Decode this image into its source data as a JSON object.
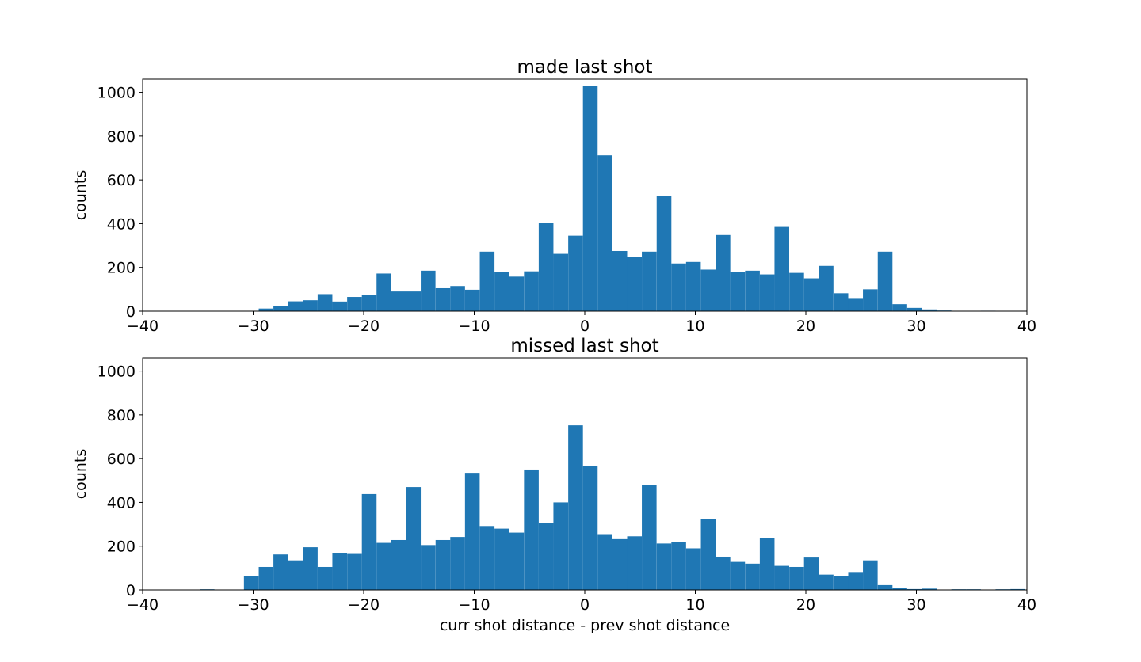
{
  "colors": {
    "bar": "#1f77b4",
    "axis": "#000000",
    "background": "#ffffff"
  },
  "chart_data": [
    {
      "type": "bar",
      "subtype": "histogram",
      "title": "made last shot",
      "xlabel": "",
      "ylabel": "counts",
      "xlim": [
        -40,
        40
      ],
      "ylim": [
        0,
        1060
      ],
      "xticks": [
        "−40",
        "−30",
        "−20",
        "−10",
        "0",
        "10",
        "20",
        "30",
        "40"
      ],
      "xtick_values": [
        -40,
        -30,
        -20,
        -10,
        0,
        10,
        20,
        30,
        40
      ],
      "yticks": [
        "0",
        "200",
        "400",
        "600",
        "800",
        "1000"
      ],
      "ytick_values": [
        0,
        200,
        400,
        600,
        800,
        1000
      ],
      "grid": false,
      "bin_width": 1.33,
      "bins": [
        {
          "x": -31.5,
          "count": 0
        },
        {
          "x": -30.17,
          "count": 0
        },
        {
          "x": -28.83,
          "count": 12
        },
        {
          "x": -27.5,
          "count": 25
        },
        {
          "x": -26.17,
          "count": 45
        },
        {
          "x": -24.83,
          "count": 50
        },
        {
          "x": -23.5,
          "count": 78
        },
        {
          "x": -22.17,
          "count": 44
        },
        {
          "x": -20.83,
          "count": 65
        },
        {
          "x": -19.5,
          "count": 75
        },
        {
          "x": -18.17,
          "count": 172
        },
        {
          "x": -16.83,
          "count": 90
        },
        {
          "x": -15.5,
          "count": 90
        },
        {
          "x": -14.17,
          "count": 185
        },
        {
          "x": -12.83,
          "count": 105
        },
        {
          "x": -11.5,
          "count": 115
        },
        {
          "x": -10.17,
          "count": 98
        },
        {
          "x": -8.83,
          "count": 272
        },
        {
          "x": -7.5,
          "count": 178
        },
        {
          "x": -6.17,
          "count": 158
        },
        {
          "x": -4.83,
          "count": 182
        },
        {
          "x": -3.5,
          "count": 405
        },
        {
          "x": -2.17,
          "count": 262
        },
        {
          "x": -0.83,
          "count": 345
        },
        {
          "x": 0.5,
          "count": 1028
        },
        {
          "x": 1.83,
          "count": 712
        },
        {
          "x": 3.17,
          "count": 275
        },
        {
          "x": 4.5,
          "count": 248
        },
        {
          "x": 5.83,
          "count": 272
        },
        {
          "x": 7.17,
          "count": 525
        },
        {
          "x": 8.5,
          "count": 218
        },
        {
          "x": 9.83,
          "count": 225
        },
        {
          "x": 11.17,
          "count": 190
        },
        {
          "x": 12.5,
          "count": 348
        },
        {
          "x": 13.83,
          "count": 178
        },
        {
          "x": 15.17,
          "count": 185
        },
        {
          "x": 16.5,
          "count": 168
        },
        {
          "x": 17.83,
          "count": 385
        },
        {
          "x": 19.17,
          "count": 175
        },
        {
          "x": 20.5,
          "count": 150
        },
        {
          "x": 21.83,
          "count": 207
        },
        {
          "x": 23.17,
          "count": 82
        },
        {
          "x": 24.5,
          "count": 60
        },
        {
          "x": 25.83,
          "count": 100
        },
        {
          "x": 27.17,
          "count": 272
        },
        {
          "x": 28.5,
          "count": 32
        },
        {
          "x": 29.83,
          "count": 15
        },
        {
          "x": 31.17,
          "count": 8
        },
        {
          "x": 32.5,
          "count": 3
        },
        {
          "x": 33.83,
          "count": 0
        },
        {
          "x": 35.17,
          "count": 0
        },
        {
          "x": 36.5,
          "count": 2
        }
      ]
    },
    {
      "type": "bar",
      "subtype": "histogram",
      "title": "missed last shot",
      "xlabel": "curr shot distance - prev shot distance",
      "ylabel": "counts",
      "xlim": [
        -40,
        40
      ],
      "ylim": [
        0,
        1060
      ],
      "xticks": [
        "−40",
        "−30",
        "−20",
        "−10",
        "0",
        "10",
        "20",
        "30",
        "40"
      ],
      "xtick_values": [
        -40,
        -30,
        -20,
        -10,
        0,
        10,
        20,
        30,
        40
      ],
      "yticks": [
        "0",
        "200",
        "400",
        "600",
        "800",
        "1000"
      ],
      "ytick_values": [
        0,
        200,
        400,
        600,
        800,
        1000
      ],
      "grid": false,
      "bin_width": 1.33,
      "bins": [
        {
          "x": -34.17,
          "count": 3
        },
        {
          "x": -32.83,
          "count": 0
        },
        {
          "x": -31.5,
          "count": 0
        },
        {
          "x": -30.17,
          "count": 65
        },
        {
          "x": -28.83,
          "count": 105
        },
        {
          "x": -27.5,
          "count": 162
        },
        {
          "x": -26.17,
          "count": 135
        },
        {
          "x": -24.83,
          "count": 195
        },
        {
          "x": -23.5,
          "count": 105
        },
        {
          "x": -22.17,
          "count": 170
        },
        {
          "x": -20.83,
          "count": 168
        },
        {
          "x": -19.5,
          "count": 438
        },
        {
          "x": -18.17,
          "count": 215
        },
        {
          "x": -16.83,
          "count": 228
        },
        {
          "x": -15.5,
          "count": 470
        },
        {
          "x": -14.17,
          "count": 205
        },
        {
          "x": -12.83,
          "count": 228
        },
        {
          "x": -11.5,
          "count": 242
        },
        {
          "x": -10.17,
          "count": 535
        },
        {
          "x": -8.83,
          "count": 292
        },
        {
          "x": -7.5,
          "count": 280
        },
        {
          "x": -6.17,
          "count": 262
        },
        {
          "x": -4.83,
          "count": 550
        },
        {
          "x": -3.5,
          "count": 305
        },
        {
          "x": -2.17,
          "count": 400
        },
        {
          "x": -0.83,
          "count": 752
        },
        {
          "x": 0.5,
          "count": 568
        },
        {
          "x": 1.83,
          "count": 255
        },
        {
          "x": 3.17,
          "count": 232
        },
        {
          "x": 4.5,
          "count": 245
        },
        {
          "x": 5.83,
          "count": 480
        },
        {
          "x": 7.17,
          "count": 212
        },
        {
          "x": 8.5,
          "count": 220
        },
        {
          "x": 9.83,
          "count": 190
        },
        {
          "x": 11.17,
          "count": 322
        },
        {
          "x": 12.5,
          "count": 152
        },
        {
          "x": 13.83,
          "count": 128
        },
        {
          "x": 15.17,
          "count": 120
        },
        {
          "x": 16.5,
          "count": 238
        },
        {
          "x": 17.83,
          "count": 110
        },
        {
          "x": 19.17,
          "count": 105
        },
        {
          "x": 20.5,
          "count": 148
        },
        {
          "x": 21.83,
          "count": 70
        },
        {
          "x": 23.17,
          "count": 62
        },
        {
          "x": 24.5,
          "count": 82
        },
        {
          "x": 25.83,
          "count": 135
        },
        {
          "x": 27.17,
          "count": 22
        },
        {
          "x": 28.5,
          "count": 10
        },
        {
          "x": 29.83,
          "count": 4
        },
        {
          "x": 31.17,
          "count": 6
        },
        {
          "x": 32.5,
          "count": 0
        },
        {
          "x": 33.83,
          "count": 3
        },
        {
          "x": 35.17,
          "count": 3
        },
        {
          "x": 36.5,
          "count": 0
        },
        {
          "x": 37.83,
          "count": 3
        },
        {
          "x": 39.17,
          "count": 4
        }
      ]
    }
  ]
}
